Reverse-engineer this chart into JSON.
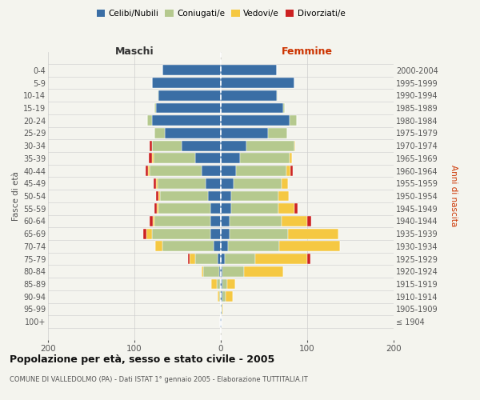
{
  "age_groups": [
    "100+",
    "95-99",
    "90-94",
    "85-89",
    "80-84",
    "75-79",
    "70-74",
    "65-69",
    "60-64",
    "55-59",
    "50-54",
    "45-49",
    "40-44",
    "35-39",
    "30-34",
    "25-29",
    "20-24",
    "15-19",
    "10-14",
    "5-9",
    "0-4"
  ],
  "birth_years": [
    "≤ 1904",
    "1905-1909",
    "1910-1914",
    "1915-1919",
    "1920-1924",
    "1925-1929",
    "1930-1934",
    "1935-1939",
    "1940-1944",
    "1945-1949",
    "1950-1954",
    "1955-1959",
    "1960-1964",
    "1965-1969",
    "1970-1974",
    "1975-1979",
    "1980-1984",
    "1985-1989",
    "1990-1994",
    "1995-1999",
    "2000-2004"
  ],
  "male_celibi": [
    1,
    0,
    0,
    1,
    2,
    4,
    8,
    12,
    12,
    12,
    15,
    18,
    22,
    30,
    45,
    65,
    80,
    75,
    72,
    80,
    68
  ],
  "male_coniugati": [
    0,
    0,
    2,
    4,
    18,
    26,
    60,
    68,
    65,
    60,
    55,
    55,
    60,
    48,
    35,
    12,
    5,
    2,
    1,
    0,
    0
  ],
  "male_vedovi": [
    0,
    0,
    2,
    6,
    2,
    6,
    8,
    6,
    2,
    2,
    2,
    2,
    2,
    2,
    0,
    0,
    0,
    0,
    0,
    0,
    0
  ],
  "male_divorziati": [
    0,
    0,
    0,
    0,
    0,
    2,
    0,
    4,
    3,
    3,
    3,
    3,
    3,
    3,
    2,
    0,
    0,
    0,
    0,
    0,
    0
  ],
  "female_nubili": [
    1,
    1,
    2,
    2,
    2,
    5,
    8,
    10,
    10,
    12,
    12,
    15,
    18,
    22,
    30,
    55,
    80,
    72,
    65,
    85,
    65
  ],
  "female_coniugate": [
    0,
    1,
    4,
    5,
    25,
    35,
    60,
    68,
    60,
    55,
    55,
    55,
    58,
    58,
    55,
    22,
    8,
    2,
    1,
    0,
    0
  ],
  "female_vedove": [
    0,
    1,
    8,
    10,
    45,
    60,
    70,
    58,
    30,
    18,
    12,
    8,
    5,
    2,
    1,
    0,
    0,
    0,
    0,
    0,
    0
  ],
  "female_divorziate": [
    0,
    0,
    0,
    0,
    0,
    4,
    0,
    0,
    5,
    4,
    0,
    0,
    2,
    0,
    0,
    0,
    0,
    0,
    0,
    0,
    0
  ],
  "col_celibi": "#3a6ea5",
  "col_coniugati": "#b5c98e",
  "col_vedovi": "#f5c842",
  "col_divorziati": "#cc2222",
  "bg_color": "#f4f4ee",
  "xlim": 200,
  "bar_height": 0.82,
  "age_label": "Fasce di età",
  "birth_label": "Anni di nascita",
  "maschi_label": "Maschi",
  "femmine_label": "Femmine",
  "legend_labels": [
    "Celibi/Nubili",
    "Coniugati/e",
    "Vedovi/e",
    "Divorziati/e"
  ],
  "title": "Popolazione per età, sesso e stato civile - 2005",
  "subtitle": "COMUNE DI VALLEDOLMO (PA) - Dati ISTAT 1° gennaio 2005 - Elaborazione TUTTITALIA.IT"
}
